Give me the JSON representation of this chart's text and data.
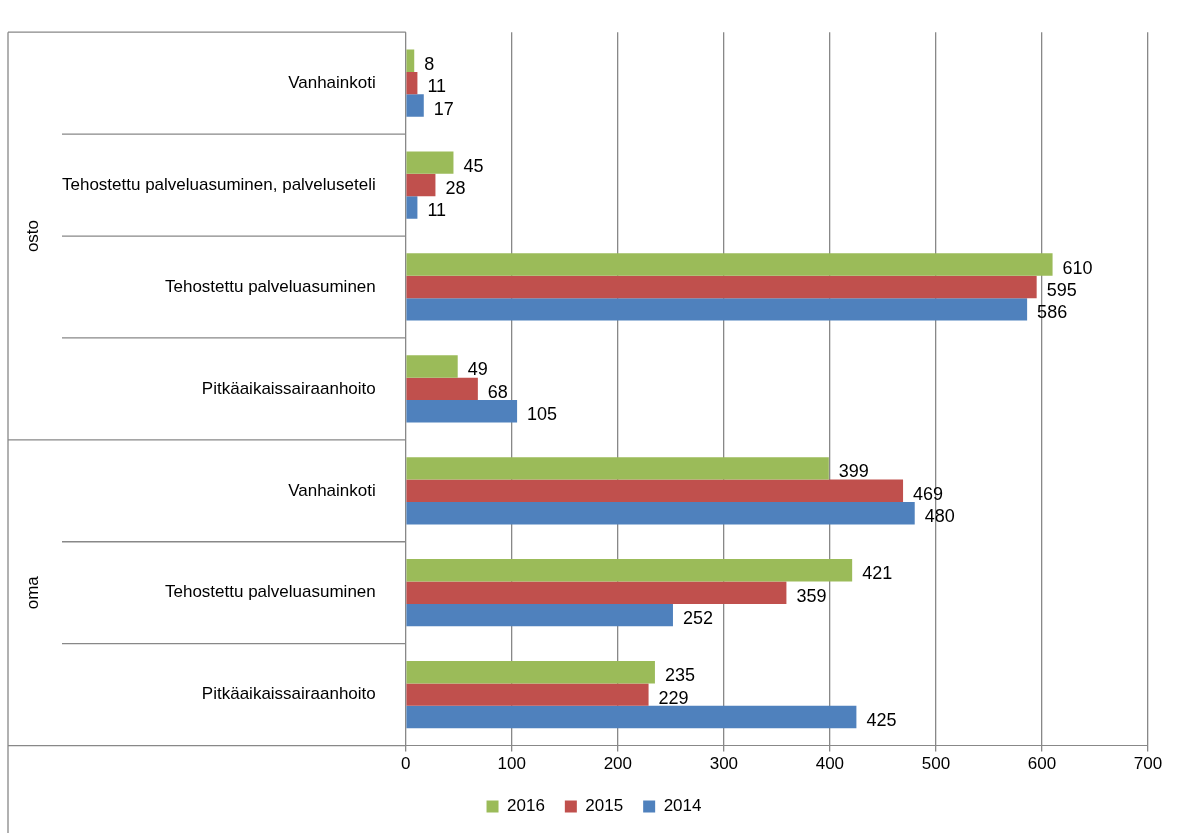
{
  "chart_data": {
    "type": "bar",
    "orientation": "horizontal",
    "categories": [
      "Vanhainkoti",
      "Tehostettu palveluasuminen, palveluseteli",
      "Tehostettu palveluasuminen",
      "Pitkäaikaissairaanhoito",
      "Vanhainkoti",
      "Tehostettu palveluasuminen",
      "Pitkäaikaissairaanhoito"
    ],
    "series": [
      {
        "name": "2016",
        "color": "#9bbb59",
        "values": [
          8,
          45,
          610,
          49,
          399,
          421,
          235
        ]
      },
      {
        "name": "2015",
        "color": "#c0504d",
        "values": [
          11,
          28,
          595,
          68,
          469,
          359,
          229
        ]
      },
      {
        "name": "2014",
        "color": "#4f81bd",
        "values": [
          17,
          11,
          586,
          105,
          480,
          252,
          425
        ]
      }
    ],
    "xlim": [
      0,
      700
    ],
    "xticks": [
      0,
      100,
      200,
      300,
      400,
      500,
      600,
      700
    ],
    "grid": "x",
    "legend": "bottom",
    "data_labels": true,
    "annotations": [
      "osto",
      "oma"
    ]
  }
}
